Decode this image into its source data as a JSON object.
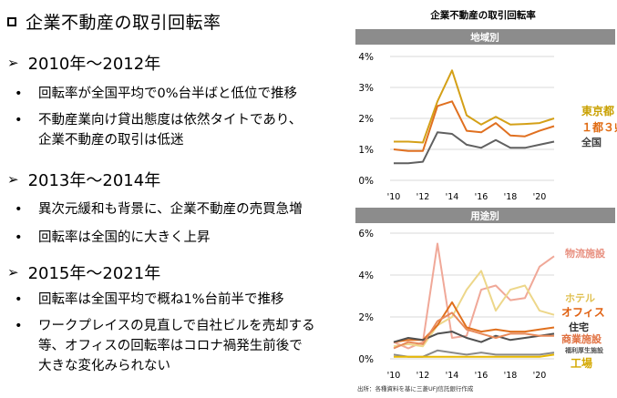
{
  "left": {
    "title": "企業不動産の取引回転率",
    "sections": [
      {
        "heading": "2010年～2012年",
        "bullets": [
          [
            "回転率が全国平均で0%台半ばと低位で推移"
          ],
          [
            "不動産業向け貸出態度は依然タイトであり、",
            "企業不動産の取引は低迷"
          ]
        ]
      },
      {
        "heading": "2013年～2014年",
        "bullets": [
          [
            "異次元緩和も背景に、企業不動産の売買急増"
          ],
          [
            "回転率は全国的に大きく上昇"
          ]
        ]
      },
      {
        "heading": "2015年～2021年",
        "bullets": [
          [
            "回転率は全国平均で概ね1%台前半で推移"
          ],
          [
            "ワークプレイスの見直しで自社ビルを売却する",
            "等、オフィスの回転率はコロナ禍発生前後で",
            "大きな変化みられない"
          ]
        ]
      }
    ]
  },
  "chart_title": "企業不動産の取引回転率",
  "source": "出所：各種資料を基に三菱UFJ信託銀行作成",
  "chart_data": [
    {
      "type": "line",
      "panel_title": "地域別",
      "x": [
        2010,
        2011,
        2012,
        2013,
        2014,
        2015,
        2016,
        2017,
        2018,
        2019,
        2020,
        2021
      ],
      "x_ticks": [
        "'10",
        "'12",
        "'14",
        "'16",
        "'18",
        "'20"
      ],
      "y_ticks": [
        "0%",
        "1%",
        "2%",
        "3%",
        "4%"
      ],
      "ylim": [
        0,
        4
      ],
      "series": [
        {
          "name": "東京都",
          "color": "#D4A017",
          "label_color": "#C9A000",
          "values": [
            1.25,
            1.25,
            1.22,
            2.55,
            3.55,
            2.1,
            1.8,
            2.05,
            1.8,
            1.82,
            1.85,
            2.0
          ]
        },
        {
          "name": "１都３県",
          "color": "#E07020",
          "label_color": "#E06A10",
          "values": [
            1.0,
            0.95,
            0.95,
            2.4,
            2.55,
            1.6,
            1.55,
            1.85,
            1.45,
            1.42,
            1.6,
            1.75
          ]
        },
        {
          "name": "全国",
          "color": "#606060",
          "label_color": "#404040",
          "values": [
            0.55,
            0.55,
            0.6,
            1.55,
            1.5,
            1.15,
            1.05,
            1.3,
            1.05,
            1.05,
            1.15,
            1.25
          ]
        }
      ]
    },
    {
      "type": "line",
      "panel_title": "用途別",
      "x": [
        2010,
        2011,
        2012,
        2013,
        2014,
        2015,
        2016,
        2017,
        2018,
        2019,
        2020,
        2021
      ],
      "x_ticks": [
        "'10",
        "'12",
        "'14",
        "'16",
        "'18",
        "'20"
      ],
      "y_ticks": [
        "0%",
        "2%",
        "4%",
        "6%"
      ],
      "ylim": [
        0,
        6
      ],
      "series": [
        {
          "name": "物流施設",
          "color": "#F0A898",
          "label_color": "#E89080",
          "values": [
            0.8,
            0.5,
            0.8,
            5.5,
            1.0,
            1.1,
            3.3,
            3.5,
            2.8,
            2.9,
            4.4,
            4.9
          ]
        },
        {
          "name": "ホテル",
          "color": "#EDD78A",
          "label_color": "#E0C050",
          "values": [
            0.6,
            0.7,
            0.6,
            1.6,
            2.0,
            3.3,
            4.2,
            2.3,
            3.3,
            3.5,
            2.3,
            2.1
          ]
        },
        {
          "name": "オフィス",
          "color": "#E0701E",
          "label_color": "#E06010",
          "values": [
            0.8,
            0.9,
            0.9,
            1.6,
            2.7,
            1.5,
            1.3,
            1.4,
            1.3,
            1.3,
            1.4,
            1.5
          ]
        },
        {
          "name": "住宅",
          "color": "#505050",
          "label_color": "#303030",
          "values": [
            0.8,
            1.0,
            0.9,
            1.2,
            1.3,
            1.0,
            0.8,
            1.1,
            0.9,
            1.0,
            1.1,
            1.2
          ]
        },
        {
          "name": "商業施設",
          "color": "#E88A5A",
          "label_color": "#E07040",
          "values": [
            0.5,
            0.8,
            0.7,
            1.8,
            2.2,
            1.4,
            1.2,
            1.0,
            1.2,
            1.2,
            1.1,
            1.1
          ]
        },
        {
          "name": "福利厚生施設",
          "color": "#8A8A8A",
          "label_color": "#505050",
          "values": [
            0.2,
            0.1,
            0.1,
            0.4,
            0.3,
            0.2,
            0.3,
            0.2,
            0.2,
            0.2,
            0.2,
            0.3
          ]
        },
        {
          "name": "工場",
          "color": "#E8B800",
          "label_color": "#D4A800",
          "values": [
            0.1,
            0.1,
            0.1,
            0.1,
            0.1,
            0.1,
            0.1,
            0.1,
            0.1,
            0.1,
            0.1,
            0.2
          ]
        }
      ]
    }
  ]
}
